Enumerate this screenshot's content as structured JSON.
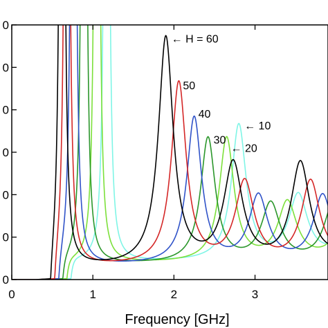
{
  "chart_data": {
    "type": "line",
    "title": "",
    "xlabel": "Frequency [GHz]",
    "ylabel": "",
    "xlim": [
      0,
      3.9
    ],
    "ylim": [
      0,
      6
    ],
    "x_ticks": [
      0,
      1,
      2,
      3
    ],
    "x_tick_labels": [
      "0",
      "1",
      "2",
      "3"
    ],
    "y_ticks": [
      0,
      1,
      2,
      3,
      4,
      5,
      6
    ],
    "y_tick_labels": [
      "0",
      "0",
      "0",
      "0",
      "0",
      "0",
      "0"
    ],
    "grid": false,
    "series": [
      {
        "name": "10",
        "color": "#7ff5e6",
        "onset": 0.73,
        "peak0": 1.17,
        "peakHeight": 3.6,
        "peakX": 2.8,
        "troughLevel": 0.8
      },
      {
        "name": "20",
        "color": "#7ce03a",
        "onset": 0.68,
        "peak0": 1.05,
        "peakHeight": 3.3,
        "peakX": 2.65,
        "troughLevel": 0.75
      },
      {
        "name": "30",
        "color": "#2a962a",
        "onset": 0.63,
        "peak0": 0.89,
        "peakHeight": 3.3,
        "peakX": 2.42,
        "troughLevel": 0.7
      },
      {
        "name": "40",
        "color": "#2f52c8",
        "onset": 0.58,
        "peak0": 0.76,
        "peakHeight": 3.78,
        "peakX": 2.25,
        "troughLevel": 0.65
      },
      {
        "name": "50",
        "color": "#d42626",
        "onset": 0.53,
        "peak0": 0.68,
        "peakHeight": 4.6,
        "peakX": 2.06,
        "troughLevel": 0.6
      },
      {
        "name": "60",
        "color": "#000000",
        "onset": 0.48,
        "peak0": 0.62,
        "peakHeight": 5.65,
        "peakX": 1.9,
        "troughLevel": 0.55
      }
    ],
    "annotations": [
      {
        "text": "H = 60",
        "series": "60",
        "arrow": true
      },
      {
        "text": "50",
        "series": "50",
        "arrow": false
      },
      {
        "text": "40",
        "series": "40",
        "arrow": false
      },
      {
        "text": "30",
        "series": "30",
        "arrow": false
      },
      {
        "text": "← 20",
        "series": "20",
        "arrow": true
      },
      {
        "text": "← 10",
        "series": "10",
        "arrow": true
      }
    ]
  }
}
